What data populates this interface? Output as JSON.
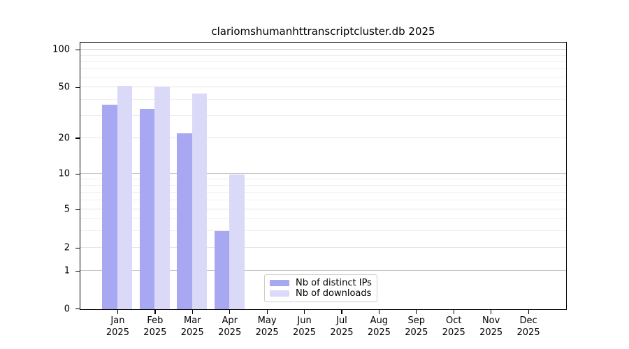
{
  "title": "clariomshumanhttranscriptcluster.db 2025",
  "chart_data": {
    "type": "bar",
    "months": [
      "Jan",
      "Feb",
      "Mar",
      "Apr",
      "May",
      "Jun",
      "Jul",
      "Aug",
      "Sep",
      "Oct",
      "Nov",
      "Dec"
    ],
    "year_label": "2025",
    "series": [
      {
        "name": "Nb of distinct IPs",
        "color": "#a7a7f2",
        "values": [
          37,
          34,
          22,
          3,
          0,
          0,
          0,
          0,
          0,
          0,
          0,
          0
        ]
      },
      {
        "name": "Nb of downloads",
        "color": "#dad9f8",
        "values": [
          52,
          51,
          45,
          10,
          0,
          0,
          0,
          0,
          0,
          0,
          0,
          0
        ]
      }
    ],
    "y_axis": {
      "tick_values": [
        0,
        1,
        2,
        5,
        10,
        20,
        50,
        100
      ],
      "tick_labels": [
        "0",
        "1",
        "2",
        "5",
        "10",
        "20",
        "50",
        "100"
      ],
      "minor_gridlines": [
        3,
        4,
        6,
        7,
        8,
        9,
        30,
        40,
        60,
        70,
        80,
        90
      ],
      "strong_gridlines": [
        1,
        10,
        100
      ],
      "scale_anchors": [
        [
          0,
          0
        ],
        [
          1,
          0.1418
        ],
        [
          2,
          0.2289
        ],
        [
          5,
          0.3732
        ],
        [
          10,
          0.5059
        ],
        [
          20,
          0.6411
        ],
        [
          50,
          0.831
        ],
        [
          100,
          0.9727
        ]
      ]
    },
    "xlabel": "",
    "ylabel": "",
    "grid": true,
    "legend_position": "lower center"
  },
  "legend": {
    "items": [
      "Nb of distinct IPs",
      "Nb of downloads"
    ]
  },
  "colors": {
    "bar_distinct_ips": "#a7a7f2",
    "bar_downloads": "#dad9f8",
    "grid_strong": "#c6c6c6",
    "grid_mid": "#e4e4e4",
    "grid_minor": "#efefef",
    "axis": "#000000",
    "background": "#ffffff"
  }
}
